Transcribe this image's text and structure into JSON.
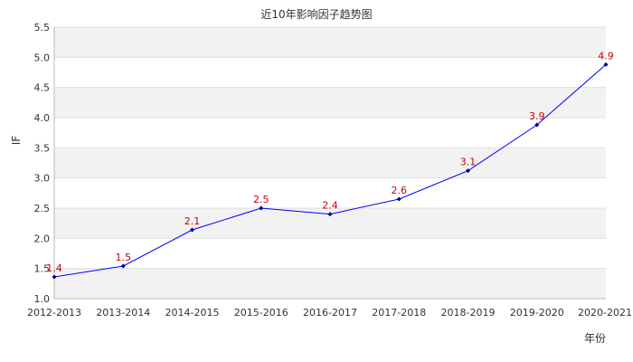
{
  "chart_data": {
    "type": "line",
    "title": "近10年影响因子趋势图",
    "xlabel": "年份",
    "ylabel": "IF",
    "categories": [
      "2012-2013",
      "2013-2014",
      "2014-2015",
      "2015-2016",
      "2016-2017",
      "2017-2018",
      "2018-2019",
      "2019-2020",
      "2020-2021"
    ],
    "series": [
      {
        "values": [
          1.36,
          1.54,
          2.14,
          2.5,
          2.4,
          2.65,
          3.12,
          3.88,
          4.88
        ]
      }
    ],
    "data_labels": [
      "1.4",
      "1.5",
      "2.1",
      "2.5",
      "2.4",
      "2.6",
      "3.1",
      "3.9",
      "4.9"
    ],
    "ylim": [
      1.0,
      5.5
    ],
    "yticks": [
      "1.0",
      "1.5",
      "2.0",
      "2.5",
      "3.0",
      "3.5",
      "4.0",
      "4.5",
      "5.0",
      "5.5"
    ],
    "grid": true,
    "band_color": "#f2f2f2",
    "line_color": "#0000ff",
    "marker_color": "#000080",
    "label_color": "#cc0000"
  }
}
